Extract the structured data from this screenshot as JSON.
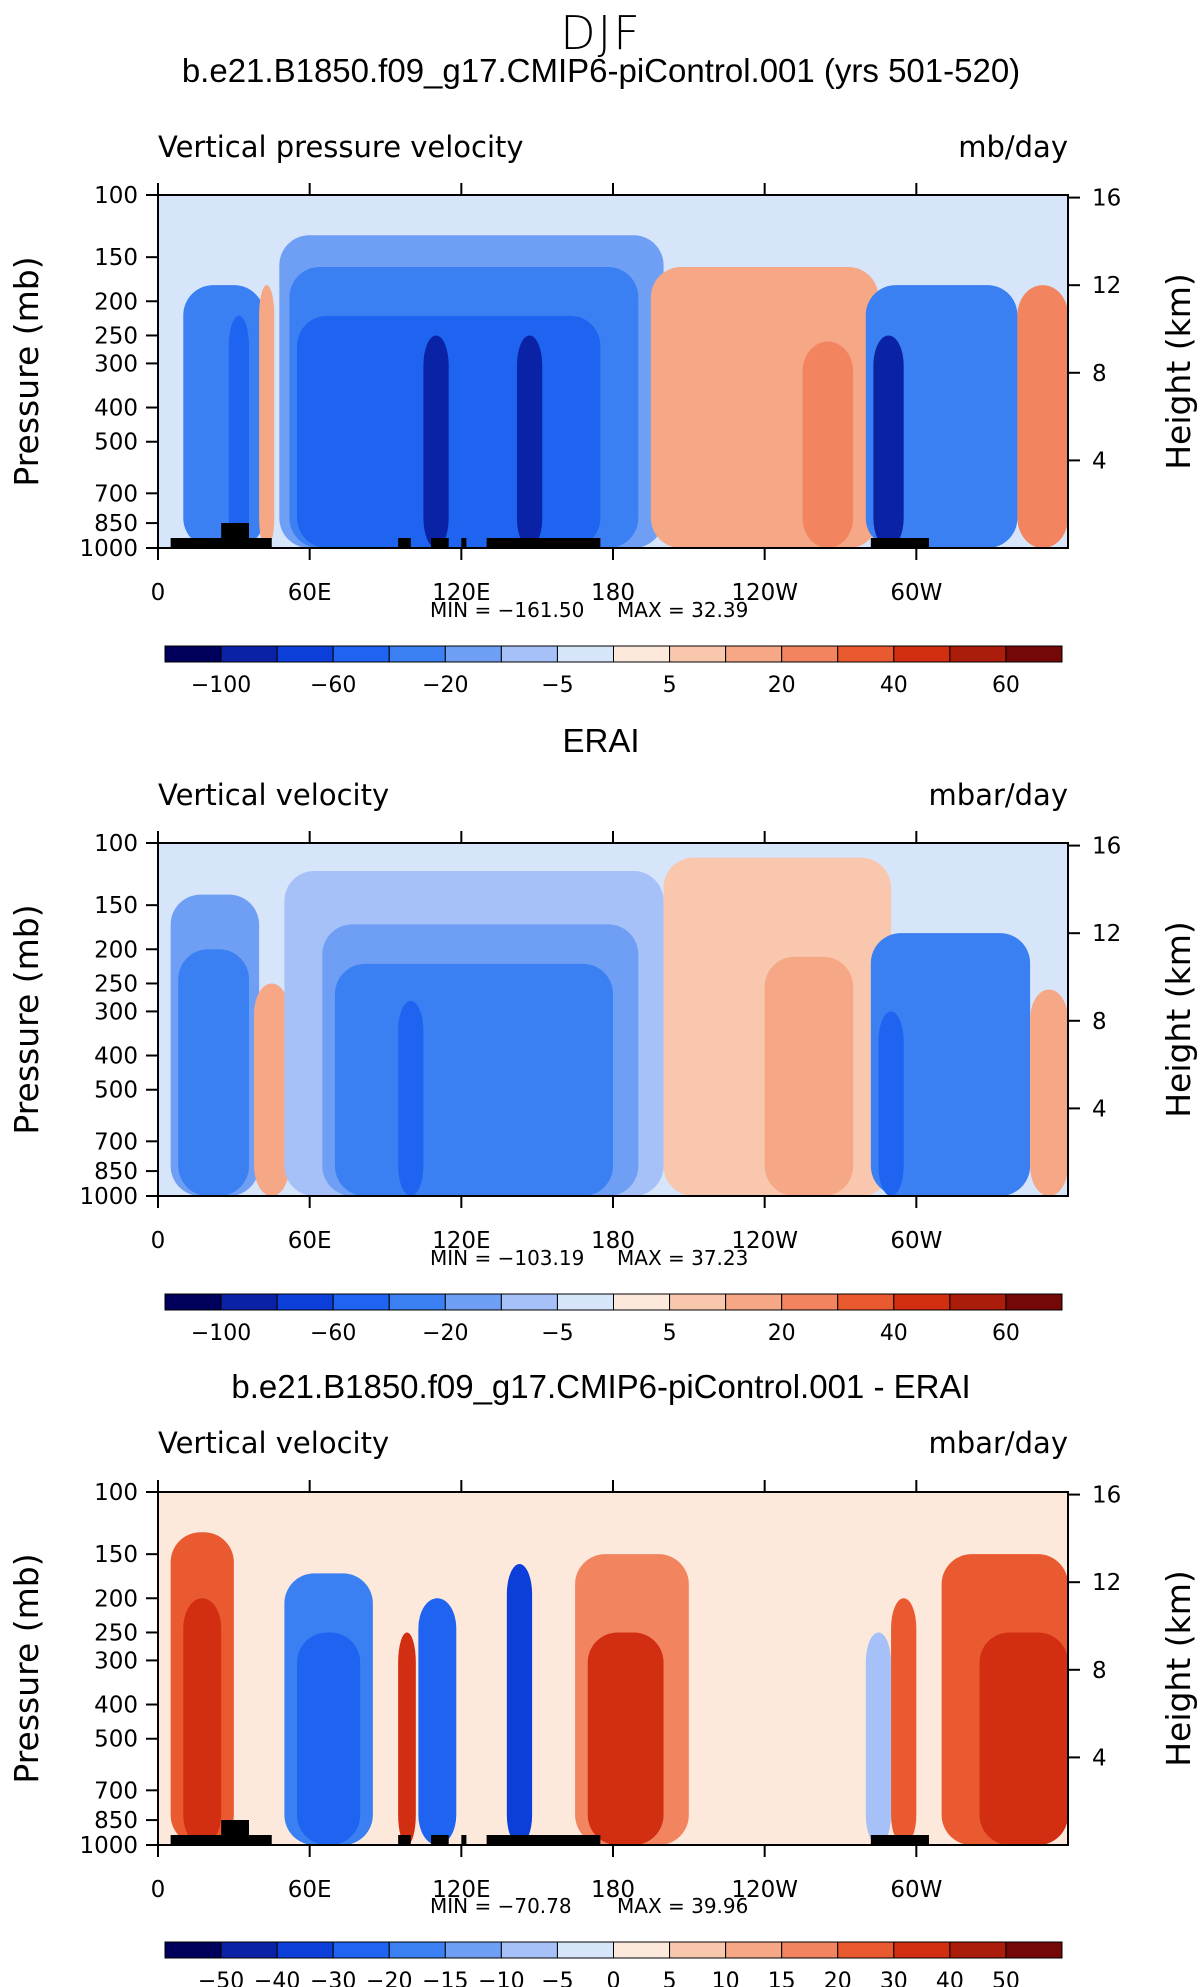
{
  "page": {
    "title": "DJF"
  },
  "colorbar_palette": [
    "#00005c",
    "#0a22a5",
    "#0c3ed9",
    "#1e64f0",
    "#3b80f2",
    "#6f9ff5",
    "#a5c1f7",
    "#d6e5fa",
    "#fde9dc",
    "#f8c7ad",
    "#f6a786",
    "#f28560",
    "#ea5a30",
    "#d22e12",
    "#a91d0a",
    "#740808"
  ],
  "chart_data": [
    {
      "type": "heatmap",
      "title": "b.e21.B1850.f09_g17.CMIP6-piControl.001 (yrs 501-520)",
      "left_label": "Vertical pressure velocity",
      "units": "mb/day",
      "ylabel": "Pressure (mb)",
      "ylabel_right": "Height (km)",
      "x_ticks": [
        "0",
        "60E",
        "120E",
        "180",
        "120W",
        "60W"
      ],
      "y_ticks": [
        "100",
        "150",
        "200",
        "250",
        "300",
        "400",
        "500",
        "700",
        "850",
        "1000"
      ],
      "y_right_ticks": [
        "16",
        "12",
        "8",
        "4"
      ],
      "min": "-161.50",
      "max": "32.39",
      "colorbar_labels": [
        "-100",
        "-60",
        "-20",
        "-5",
        "5",
        "20",
        "40",
        "60"
      ],
      "features": [
        {
          "lon_min": 10,
          "lon_max": 42,
          "p_top": 180,
          "level": -40
        },
        {
          "lon_min": 28,
          "lon_max": 36,
          "p_top": 220,
          "level": -60
        },
        {
          "lon_min": 40,
          "lon_max": 46,
          "p_top": 180,
          "level": 15
        },
        {
          "lon_min": 48,
          "lon_max": 200,
          "p_top": 130,
          "level": -20
        },
        {
          "lon_min": 52,
          "lon_max": 190,
          "p_top": 160,
          "level": -40
        },
        {
          "lon_min": 55,
          "lon_max": 175,
          "p_top": 220,
          "level": -60
        },
        {
          "lon_min": 105,
          "lon_max": 115,
          "p_top": 250,
          "level": -100
        },
        {
          "lon_min": 142,
          "lon_max": 152,
          "p_top": 250,
          "level": -100
        },
        {
          "lon_min": 195,
          "lon_max": 285,
          "p_top": 160,
          "level": 15
        },
        {
          "lon_min": 255,
          "lon_max": 275,
          "p_top": 260,
          "level": 25
        },
        {
          "lon_min": 280,
          "lon_max": 340,
          "p_top": 180,
          "level": -40
        },
        {
          "lon_min": 283,
          "lon_max": 295,
          "p_top": 250,
          "level": -100
        },
        {
          "lon_min": 340,
          "lon_max": 360,
          "p_top": 180,
          "level": 25
        }
      ]
    },
    {
      "type": "heatmap",
      "title": "ERAI",
      "left_label": "Vertical velocity",
      "units": "mbar/day",
      "ylabel": "Pressure (mb)",
      "ylabel_right": "Height (km)",
      "x_ticks": [
        "0",
        "60E",
        "120E",
        "180",
        "120W",
        "60W"
      ],
      "y_ticks": [
        "100",
        "150",
        "200",
        "250",
        "300",
        "400",
        "500",
        "700",
        "850",
        "1000"
      ],
      "y_right_ticks": [
        "16",
        "12",
        "8",
        "4"
      ],
      "min": "-103.19",
      "max": "37.23",
      "colorbar_labels": [
        "-100",
        "-60",
        "-20",
        "-5",
        "5",
        "20",
        "40",
        "60"
      ],
      "features": [
        {
          "lon_min": 5,
          "lon_max": 40,
          "p_top": 140,
          "level": -20
        },
        {
          "lon_min": 8,
          "lon_max": 36,
          "p_top": 200,
          "level": -40
        },
        {
          "lon_min": 38,
          "lon_max": 52,
          "p_top": 250,
          "level": 15
        },
        {
          "lon_min": 50,
          "lon_max": 200,
          "p_top": 120,
          "level": -10
        },
        {
          "lon_min": 65,
          "lon_max": 190,
          "p_top": 170,
          "level": -20
        },
        {
          "lon_min": 70,
          "lon_max": 180,
          "p_top": 220,
          "level": -40
        },
        {
          "lon_min": 95,
          "lon_max": 105,
          "p_top": 280,
          "level": -60
        },
        {
          "lon_min": 200,
          "lon_max": 290,
          "p_top": 110,
          "level": 5
        },
        {
          "lon_min": 240,
          "lon_max": 275,
          "p_top": 210,
          "level": 15
        },
        {
          "lon_min": 282,
          "lon_max": 345,
          "p_top": 180,
          "level": -40
        },
        {
          "lon_min": 285,
          "lon_max": 295,
          "p_top": 300,
          "level": -60
        },
        {
          "lon_min": 345,
          "lon_max": 360,
          "p_top": 260,
          "level": 10
        }
      ]
    },
    {
      "type": "heatmap",
      "title": "b.e21.B1850.f09_g17.CMIP6-piControl.001 - ERAI",
      "left_label": "Vertical velocity",
      "units": "mbar/day",
      "ylabel": "Pressure (mb)",
      "ylabel_right": "Height (km)",
      "x_ticks": [
        "0",
        "60E",
        "120E",
        "180",
        "120W",
        "60W"
      ],
      "y_ticks": [
        "100",
        "150",
        "200",
        "250",
        "300",
        "400",
        "500",
        "700",
        "850",
        "1000"
      ],
      "y_right_ticks": [
        "16",
        "12",
        "8",
        "4"
      ],
      "min": "-70.78",
      "max": "39.96",
      "colorbar_labels": [
        "-50",
        "-40",
        "-30",
        "-20",
        "-15",
        "-10",
        "-5",
        "0",
        "5",
        "10",
        "15",
        "20",
        "30",
        "40",
        "50"
      ],
      "features": [
        {
          "lon_min": 5,
          "lon_max": 30,
          "p_top": 130,
          "level": 20
        },
        {
          "lon_min": 10,
          "lon_max": 25,
          "p_top": 200,
          "level": 30
        },
        {
          "lon_min": 50,
          "lon_max": 85,
          "p_top": 170,
          "level": -20
        },
        {
          "lon_min": 55,
          "lon_max": 80,
          "p_top": 250,
          "level": -30
        },
        {
          "lon_min": 95,
          "lon_max": 102,
          "p_top": 250,
          "level": 30
        },
        {
          "lon_min": 103,
          "lon_max": 118,
          "p_top": 200,
          "level": -30
        },
        {
          "lon_min": 138,
          "lon_max": 148,
          "p_top": 160,
          "level": -40
        },
        {
          "lon_min": 165,
          "lon_max": 210,
          "p_top": 150,
          "level": 15
        },
        {
          "lon_min": 170,
          "lon_max": 200,
          "p_top": 250,
          "level": 30
        },
        {
          "lon_min": 280,
          "lon_max": 290,
          "p_top": 250,
          "level": -10
        },
        {
          "lon_min": 290,
          "lon_max": 300,
          "p_top": 200,
          "level": 20
        },
        {
          "lon_min": 310,
          "lon_max": 360,
          "p_top": 150,
          "level": 20
        },
        {
          "lon_min": 325,
          "lon_max": 360,
          "p_top": 250,
          "level": 30
        }
      ]
    }
  ]
}
